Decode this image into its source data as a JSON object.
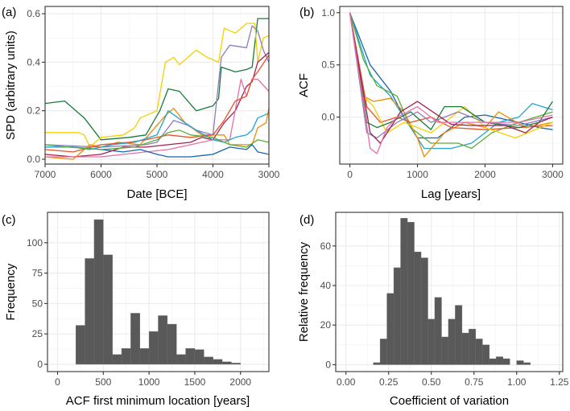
{
  "chart_data": [
    {
      "panel_label": "(a)",
      "type": "line",
      "xlabel": "Date [BCE]",
      "ylabel": "SPD (arbitrary units)",
      "xlim": [
        7000,
        3000
      ],
      "ylim": [
        -0.02,
        0.63
      ],
      "xticks": [
        7000,
        6000,
        5000,
        4000,
        3000
      ],
      "xtick_labels": [
        "7000",
        "6000",
        "5000",
        "4000",
        "3000"
      ],
      "yticks": [
        0,
        0.2,
        0.4,
        0.6
      ],
      "ytick_labels": [
        "0.0",
        "0.2",
        "0.4",
        "0.6"
      ],
      "grid": true,
      "series": [
        {
          "color": "#1a7a3c",
          "x": [
            7000,
            6650,
            6300,
            6000,
            5500,
            5200,
            4950,
            4800,
            4600,
            4300,
            4000,
            3900,
            3850,
            3600,
            3400,
            3300,
            3200,
            3000
          ],
          "y": [
            0.23,
            0.24,
            0.17,
            0.08,
            0.09,
            0.1,
            0.2,
            0.29,
            0.28,
            0.2,
            0.22,
            0.25,
            0.38,
            0.36,
            0.37,
            0.38,
            0.58,
            0.58
          ]
        },
        {
          "color": "#f5d000",
          "x": [
            7000,
            6400,
            6300,
            6200,
            6000,
            5600,
            5400,
            5300,
            5000,
            4850,
            4700,
            4600,
            4300,
            4100,
            3900,
            3800,
            3600,
            3400,
            3250,
            3200,
            3100,
            3000
          ],
          "y": [
            0.11,
            0.11,
            0.1,
            0.05,
            0.09,
            0.1,
            0.13,
            0.17,
            0.2,
            0.4,
            0.42,
            0.39,
            0.45,
            0.42,
            0.4,
            0.54,
            0.52,
            0.56,
            0.56,
            0.4,
            0.5,
            0.51
          ]
        },
        {
          "color": "#8f7cbb",
          "x": [
            7000,
            6000,
            5200,
            5000,
            4700,
            4450,
            4300,
            4000,
            3850,
            3700,
            3400,
            3300,
            3200,
            3100,
            3000
          ],
          "y": [
            0.06,
            0.05,
            0.06,
            0.07,
            0.16,
            0.14,
            0.12,
            0.1,
            0.42,
            0.47,
            0.46,
            0.55,
            0.53,
            0.45,
            0.4
          ]
        },
        {
          "color": "#a1224c",
          "x": [
            7000,
            6500,
            6000,
            5600,
            5200,
            4800,
            4400,
            4200,
            4000,
            3800,
            3600,
            3400,
            3300,
            3200,
            3000
          ],
          "y": [
            0.02,
            0.01,
            0.02,
            0.05,
            0.05,
            0.06,
            0.07,
            0.09,
            0.08,
            0.15,
            0.2,
            0.3,
            0.32,
            0.4,
            0.44
          ]
        },
        {
          "color": "#e570a8",
          "x": [
            7000,
            6000,
            5600,
            5200,
            4800,
            4200,
            4000,
            3700,
            3500,
            3400,
            3300,
            3200,
            3000
          ],
          "y": [
            0.01,
            0.01,
            0.02,
            0.03,
            0.04,
            0.07,
            0.08,
            0.08,
            0.33,
            0.26,
            0.33,
            0.33,
            0.28
          ]
        },
        {
          "color": "#f28a00",
          "x": [
            7000,
            6500,
            6200,
            6000,
            5700,
            5300,
            4850,
            4700,
            4500,
            4200,
            3800,
            3700,
            3300,
            3200,
            3050,
            3000
          ],
          "y": [
            0.01,
            0.0,
            0.06,
            0.05,
            0.07,
            0.06,
            0.18,
            0.21,
            0.15,
            0.1,
            0.1,
            0.06,
            0.06,
            0.13,
            0.15,
            0.21
          ]
        },
        {
          "color": "#e8532a",
          "x": [
            7000,
            6500,
            6000,
            5500,
            5200,
            4800,
            4400,
            4000,
            3800,
            3600,
            3400,
            3300,
            3200,
            3000
          ],
          "y": [
            0.04,
            0.03,
            0.06,
            0.07,
            0.08,
            0.1,
            0.09,
            0.1,
            0.16,
            0.24,
            0.26,
            0.33,
            0.36,
            0.43
          ]
        },
        {
          "color": "#1565a8",
          "x": [
            7000,
            6500,
            6000,
            5600,
            5300,
            5000,
            4800,
            4400,
            4000,
            3700,
            3400,
            3300,
            3200,
            3000
          ],
          "y": [
            0.05,
            0.05,
            0.04,
            0.03,
            0.04,
            0.02,
            0.01,
            0.01,
            0.02,
            0.05,
            0.04,
            0.06,
            0.03,
            0.02
          ]
        },
        {
          "color": "#1fa3d8",
          "x": [
            7000,
            6500,
            6200,
            5800,
            5400,
            5000,
            4800,
            4500,
            4300,
            4000,
            3800,
            3600,
            3400,
            3300,
            3200,
            3000
          ],
          "y": [
            0.05,
            0.05,
            0.04,
            0.06,
            0.07,
            0.1,
            0.2,
            0.15,
            0.12,
            0.08,
            0.07,
            0.09,
            0.1,
            0.12,
            0.17,
            0.19
          ]
        },
        {
          "color": "#5aab3a",
          "x": [
            7000,
            6600,
            6000,
            5400,
            5000,
            4800,
            4600,
            4400,
            4000,
            3700,
            3400,
            3200,
            3000
          ],
          "y": [
            0.06,
            0.05,
            0.04,
            0.05,
            0.08,
            0.11,
            0.12,
            0.1,
            0.09,
            0.06,
            0.05,
            0.08,
            0.07
          ]
        }
      ]
    },
    {
      "panel_label": "(b)",
      "type": "line",
      "xlabel": "Lag [years]",
      "ylabel": "ACF",
      "xlim": [
        -150,
        3150
      ],
      "ylim": [
        -0.45,
        1.06
      ],
      "xticks": [
        0,
        1000,
        2000,
        3000
      ],
      "xtick_labels": [
        "0",
        "1000",
        "2000",
        "3000"
      ],
      "yticks": [
        0,
        0.5,
        1.0
      ],
      "ytick_labels": [
        "0.0",
        "0.5",
        "1.0"
      ],
      "grid": true,
      "series": [
        {
          "color": "#1565a8",
          "x": [
            0,
            300,
            600,
            800,
            1000,
            1300,
            1700,
            2000,
            2500,
            2800,
            3000
          ],
          "y": [
            1,
            0.5,
            0.25,
            0.0,
            -0.2,
            -0.2,
            0.0,
            0.02,
            -0.05,
            -0.1,
            -0.12
          ]
        },
        {
          "color": "#1fa3d8",
          "x": [
            0,
            300,
            600,
            900,
            1100,
            1500,
            1800,
            2200,
            2500,
            2700,
            3000
          ],
          "y": [
            1,
            0.4,
            0.2,
            -0.1,
            -0.3,
            -0.3,
            -0.25,
            -0.05,
            0.0,
            0.13,
            0.07
          ]
        },
        {
          "color": "#5aab3a",
          "x": [
            0,
            200,
            400,
            700,
            900,
            1200,
            1600,
            1800,
            2100,
            2500,
            3000
          ],
          "y": [
            1,
            0.55,
            0.3,
            0.2,
            -0.1,
            -0.25,
            -0.25,
            -0.3,
            -0.15,
            -0.05,
            0.05
          ]
        },
        {
          "color": "#f28a00",
          "x": [
            0,
            200,
            350,
            600,
            800,
            1000,
            1100,
            1400,
            1700,
            2000,
            2200,
            2600,
            3000
          ],
          "y": [
            1,
            0.2,
            0.15,
            0.18,
            0.05,
            -0.2,
            -0.38,
            -0.15,
            -0.05,
            -0.1,
            0.05,
            -0.1,
            -0.05
          ]
        },
        {
          "color": "#e8532a",
          "x": [
            0,
            250,
            450,
            700,
            900,
            1200,
            1500,
            2000,
            2500,
            3000
          ],
          "y": [
            1,
            0.1,
            -0.05,
            0.0,
            -0.05,
            0.0,
            -0.1,
            -0.12,
            -0.1,
            -0.08
          ]
        },
        {
          "color": "#f5d000",
          "x": [
            0,
            200,
            350,
            550,
            800,
            1200,
            1700,
            2000,
            2450,
            3000
          ],
          "y": [
            1,
            0.2,
            0.1,
            -0.15,
            -0.05,
            -0.15,
            0.1,
            -0.1,
            -0.2,
            -0.05
          ]
        },
        {
          "color": "#1a7a3c",
          "x": [
            0,
            250,
            400,
            600,
            900,
            1200,
            1400,
            1650,
            2000,
            2500,
            2800,
            3000
          ],
          "y": [
            1,
            -0.05,
            -0.1,
            -0.05,
            0.05,
            -0.12,
            0.1,
            0.1,
            -0.05,
            -0.1,
            -0.05,
            0.15
          ]
        },
        {
          "color": "#8f7cbb",
          "x": [
            0,
            250,
            400,
            700,
            1000,
            1200,
            1600,
            2000,
            2500,
            3000
          ],
          "y": [
            1,
            -0.15,
            -0.2,
            -0.05,
            0.05,
            -0.05,
            0.05,
            -0.05,
            -0.08,
            0.0
          ]
        },
        {
          "color": "#a1224c",
          "x": [
            0,
            300,
            450,
            750,
            1000,
            1500,
            1800,
            2300,
            2600,
            2800,
            3000
          ],
          "y": [
            1,
            -0.15,
            -0.25,
            0.05,
            0.15,
            -0.07,
            -0.08,
            -0.08,
            -0.15,
            -0.05,
            0.0
          ]
        },
        {
          "color": "#e570a8",
          "x": [
            0,
            300,
            400,
            550,
            700,
            1000,
            1300,
            2000,
            2500,
            3000
          ],
          "y": [
            1,
            -0.3,
            -0.35,
            -0.1,
            0.0,
            0.1,
            -0.05,
            -0.05,
            -0.05,
            0.02
          ]
        }
      ]
    },
    {
      "panel_label": "(c)",
      "type": "bar",
      "xlabel": "ACF first minimum location [years]",
      "ylabel": "Frequency",
      "xlim": [
        -110,
        2310
      ],
      "ylim": [
        -6,
        125
      ],
      "xticks": [
        0,
        500,
        1000,
        1500,
        2000
      ],
      "xtick_labels": [
        "0",
        "500",
        "1000",
        "1500",
        "2000"
      ],
      "yticks": [
        0,
        25,
        50,
        75,
        100
      ],
      "ytick_labels": [
        "0",
        "25",
        "50",
        "75",
        "100"
      ],
      "grid": true,
      "bin_start": 200,
      "bin_width": 100,
      "values": [
        32,
        87,
        119,
        90,
        8,
        13,
        42,
        13,
        27,
        40,
        33,
        8,
        13,
        12,
        6,
        4,
        2,
        1
      ],
      "bar_color": "#595959"
    },
    {
      "panel_label": "(d)",
      "type": "bar",
      "xlabel": "Coefficient of variation",
      "ylabel": "Relative frequency",
      "xlim": [
        -0.06,
        1.27
      ],
      "ylim": [
        -3.5,
        77
      ],
      "xticks": [
        0,
        0.25,
        0.5,
        0.75,
        1.0,
        1.25
      ],
      "xtick_labels": [
        "0.00",
        "0.25",
        "0.50",
        "0.75",
        "1.00",
        "1.25"
      ],
      "yticks": [
        0,
        20,
        40,
        60
      ],
      "ytick_labels": [
        "0",
        "20",
        "40",
        "60"
      ],
      "grid": true,
      "bin_start": 0.16,
      "bin_width": 0.04,
      "values": [
        1,
        13,
        36,
        49,
        74,
        72,
        57,
        54,
        23,
        34,
        14,
        23,
        30,
        16,
        18,
        13,
        10,
        3,
        4,
        3,
        0,
        2,
        1
      ],
      "bar_color": "#595959"
    }
  ]
}
